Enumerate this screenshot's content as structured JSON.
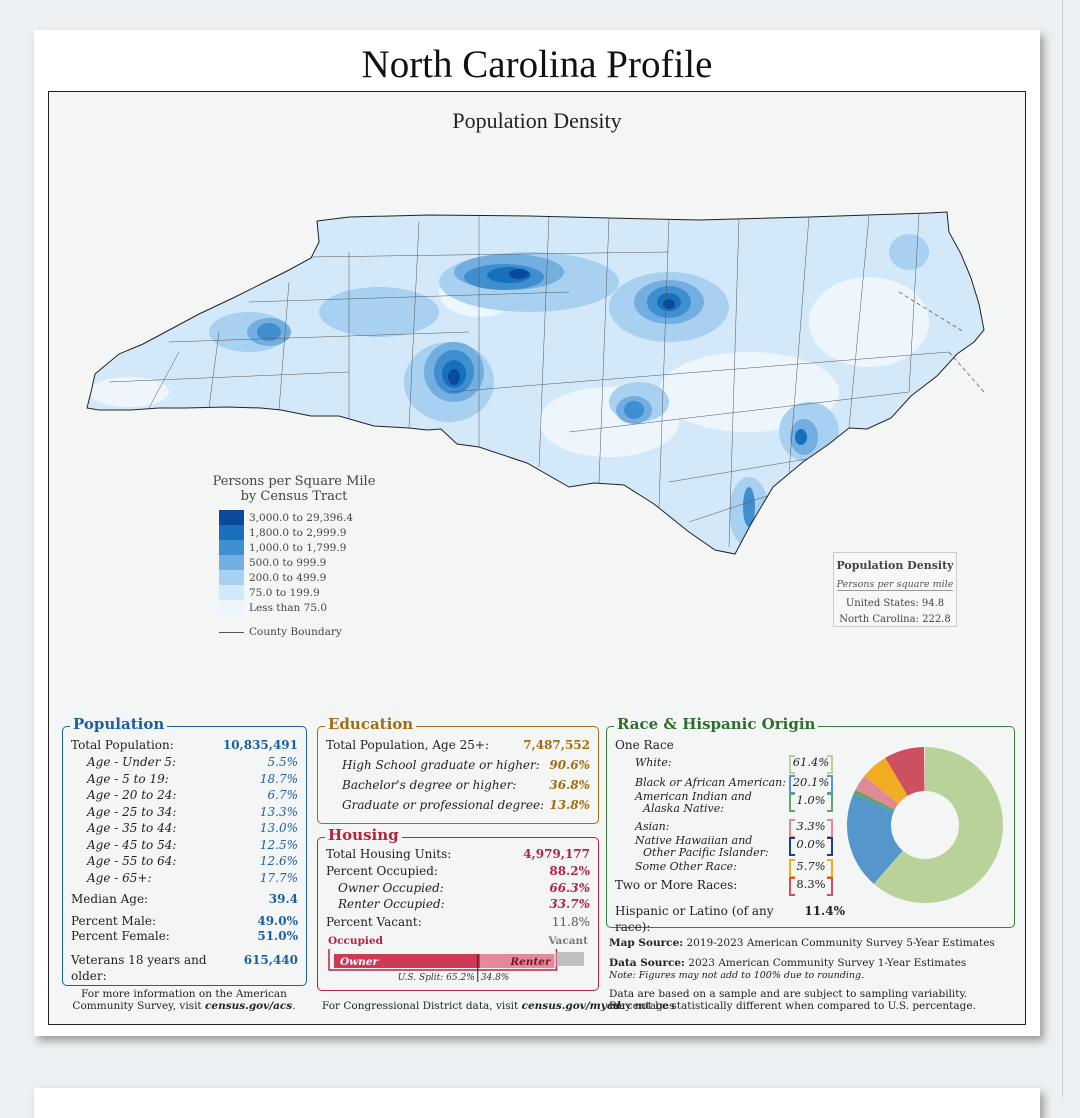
{
  "title": "North Carolina Profile",
  "map": {
    "title": "Population Density",
    "legend": {
      "title_line1": "Persons per Square Mile",
      "title_line2": "by Census Tract",
      "classes": [
        {
          "label": "3,000.0 to 29,396.4",
          "color": "#0b4a9a"
        },
        {
          "label": "1,800.0 to 2,999.9",
          "color": "#1870bd"
        },
        {
          "label": "1,000.0 to 1,799.9",
          "color": "#3f8fd0"
        },
        {
          "label": "500.0 to 999.9",
          "color": "#72aee0"
        },
        {
          "label": "200.0 to 499.9",
          "color": "#a8d0f0"
        },
        {
          "label": "75.0 to 199.9",
          "color": "#d3e9f9"
        },
        {
          "label": "Less than 75.0",
          "color": "#eef6fd"
        }
      ],
      "county_boundary": "County Boundary"
    },
    "density_box": {
      "title": "Population Density",
      "subtitle": "Persons per square mile",
      "us_label": "United States:",
      "us_value": "94.8",
      "nc_label": "North Carolina:",
      "nc_value": "222.8"
    }
  },
  "population": {
    "title": "Population",
    "total_label": "Total Population:",
    "total_value": "10,835,491",
    "ages": [
      {
        "label": "Age - Under 5:",
        "value": "5.5%"
      },
      {
        "label": "Age - 5 to 19:",
        "value": "18.7%"
      },
      {
        "label": "Age - 20 to 24:",
        "value": "6.7%"
      },
      {
        "label": "Age - 25 to 34:",
        "value": "13.3%"
      },
      {
        "label": "Age - 35 to 44:",
        "value": "13.0%"
      },
      {
        "label": "Age - 45 to 54:",
        "value": "12.5%"
      },
      {
        "label": "Age - 55 to 64:",
        "value": "12.6%"
      },
      {
        "label": "Age - 65+:",
        "value": "17.7%"
      }
    ],
    "median_label": "Median Age:",
    "median_value": "39.4",
    "male_label": "Percent Male:",
    "male_value": "49.0%",
    "female_label": "Percent Female:",
    "female_value": "51.0%",
    "veterans_label": "Veterans 18 years and older:",
    "veterans_value": "615,440"
  },
  "education": {
    "title": "Education",
    "total_label": "Total Population, Age 25+:",
    "total_value": "7,487,552",
    "rows": [
      {
        "label": "High School  graduate or higher:",
        "value": "90.6%"
      },
      {
        "label": "Bachelor's degree or higher:",
        "value": "36.8%"
      },
      {
        "label": "Graduate or professional degree:",
        "value": "13.8%"
      }
    ]
  },
  "housing": {
    "title": "Housing",
    "units_label": "Total Housing Units:",
    "units_value": "4,979,177",
    "occupied_label": "Percent Occupied:",
    "occupied_value": "88.2%",
    "owner_label": "Owner Occupied:",
    "owner_value": "66.3%",
    "renter_label": "Renter Occupied:",
    "renter_value": "33.7%",
    "vacant_label": "Percent Vacant:",
    "vacant_value": "11.8%",
    "bar": {
      "occupied_caption": "Occupied",
      "vacant_caption": "Vacant",
      "owner_caption": "Owner",
      "renter_caption": "Renter",
      "occupied_share": 0.882,
      "owner_share_of_occupied": 0.663,
      "us_split_text": "U.S. Split: 65.2%",
      "us_split_renter": "34.8%",
      "us_owner_share": 0.652
    }
  },
  "race": {
    "title": "Race & Hispanic Origin",
    "one_race_label": "One Race",
    "rows": [
      {
        "label": "White:",
        "value": "61.4%",
        "share": 61.4,
        "color": "#b8d29a"
      },
      {
        "label": "Black or African American:",
        "value": "20.1%",
        "share": 20.1,
        "color": "#5596cc"
      },
      {
        "label": "American Indian and Alaska Native:",
        "label_line1": "American Indian and",
        "label_line2": "Alaska Native:",
        "value": "1.0%",
        "share": 1.0,
        "color": "#62a46e"
      },
      {
        "label": "Asian:",
        "value": "3.3%",
        "share": 3.3,
        "color": "#e08a98"
      },
      {
        "label": "Native Hawaiian and Other Pacific Islander:",
        "label_line1": "Native Hawaiian and",
        "label_line2": "Other Pacific Islander:",
        "value": "0.0%",
        "share": 0.0,
        "color": "#1c3f87"
      },
      {
        "label": "Some Other Race:",
        "value": "5.7%",
        "share": 5.7,
        "color": "#f1ad22"
      },
      {
        "label": "Two or More Races:",
        "value": "8.3%",
        "share": 8.3,
        "color": "#cc5060"
      }
    ],
    "hispanic_label": "Hispanic or Latino (of any race):",
    "hispanic_value": "11.4%"
  },
  "sources": {
    "map_label": "Map Source:",
    "map_text": "2019-2023 American Community Survey 5-Year Estimates",
    "data_label": "Data Source:",
    "data_text": "2023 American Community Survey 1-Year Estimates",
    "note": "Note: Figures may not add to 100% due to rounding.",
    "disclaimer_line1": "Data are based on a sample and are subject to sampling variability. Percentages",
    "disclaimer_line2": "may not be statistically different when compared to U.S. percentage."
  },
  "footer": {
    "acs_line1": "For more information on the American",
    "acs_line2_prefix": "Community Survey, visit ",
    "acs_link": "census.gov/acs",
    "acs_suffix": ".",
    "cd_prefix": "For Congressional District data, visit ",
    "cd_link": "census.gov/mycd",
    "cd_suffix": "."
  }
}
